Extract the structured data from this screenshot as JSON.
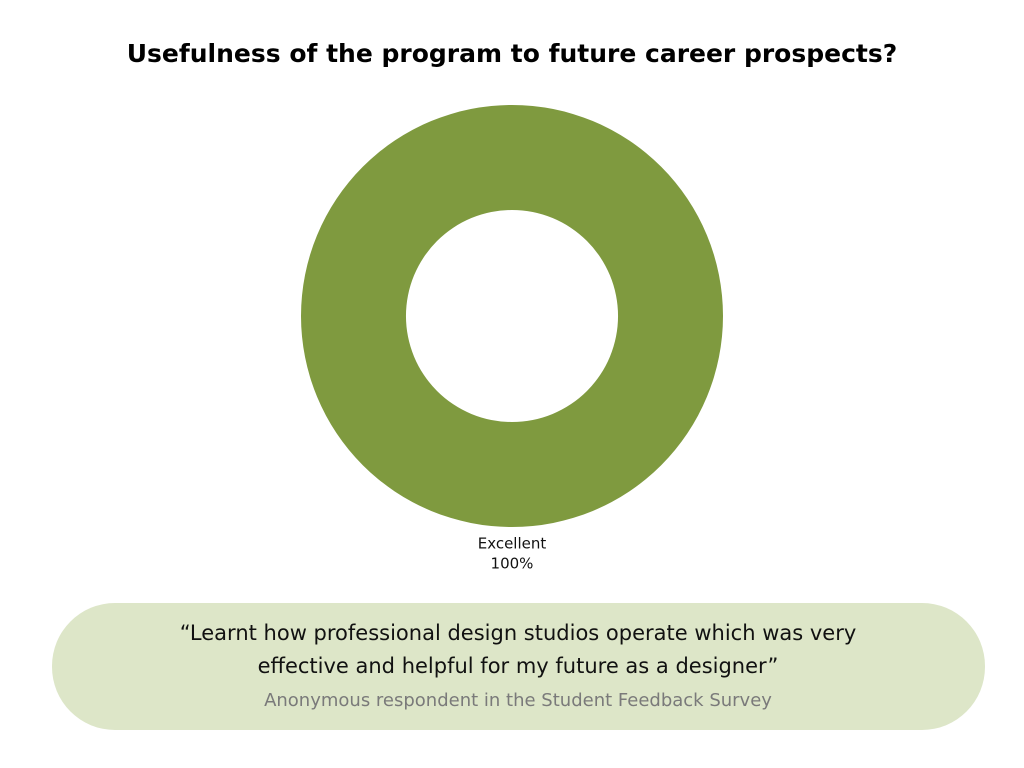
{
  "chart_data": {
    "type": "donut",
    "title": "Usefulness of the program to future career prospects?",
    "categories": [
      "Excellent"
    ],
    "values": [
      100
    ],
    "value_labels": [
      "100%"
    ],
    "colors": [
      "#7f9a3f"
    ]
  },
  "quote": {
    "lines": [
      "“Learnt how professional design studios operate which was very",
      "effective and helpful for my future as a designer”"
    ],
    "attribution": "Anonymous respondent in the Student Feedback Survey"
  }
}
